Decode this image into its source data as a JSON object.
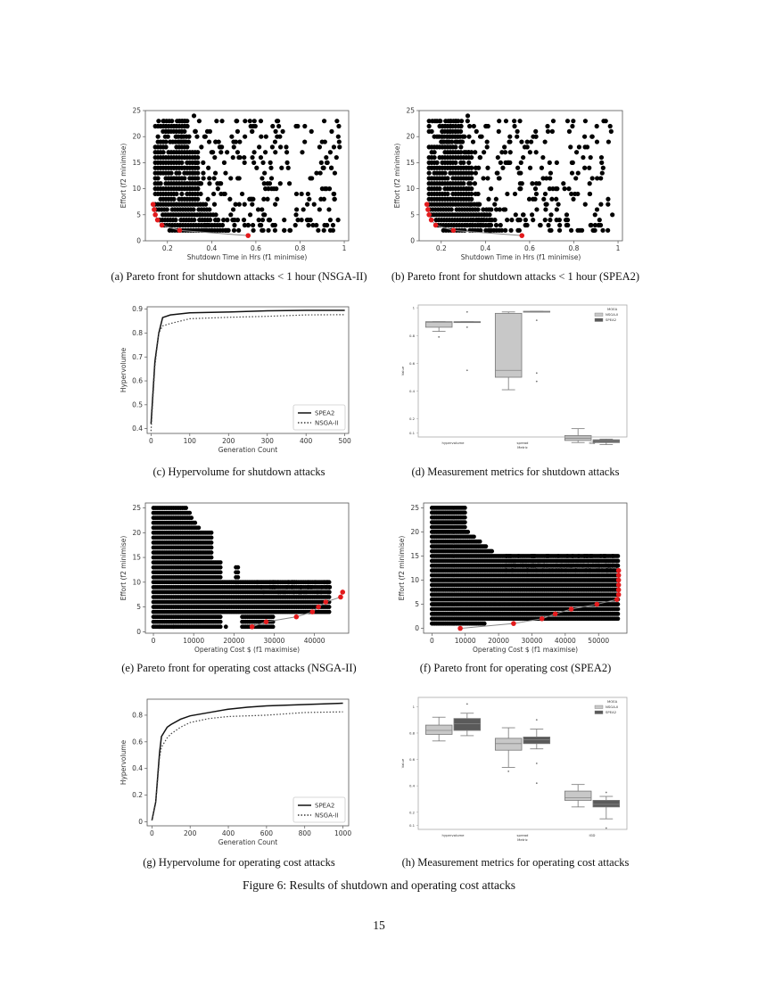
{
  "figure_caption": "Figure 6: Results of shutdown and operating cost attacks",
  "page_number": "15",
  "subcaptions": {
    "a": "(a) Pareto front for shutdown attacks < 1 hour (NSGA-II)",
    "b": "(b) Pareto front for shutdown attacks < 1 hour (SPEA2)",
    "c": "(c) Hypervolume for shutdown attacks",
    "d": "(d) Measurement metrics for shutdown attacks",
    "e": "(e) Pareto front for operating cost attacks (NSGA-II)",
    "f": "(f) Pareto front for operating cost (SPEA2)",
    "g": "(g) Hypervolume for operating cost attacks",
    "h": "(h) Measurement metrics for operating cost attacks"
  },
  "colors": {
    "points": "#000000",
    "pareto": "#e31a1c",
    "box_nsga": "#c8c8c8",
    "box_spea": "#5a5a5a"
  },
  "chart_data": [
    {
      "id": "a",
      "type": "scatter",
      "title": "",
      "xlabel": "Shutdown Time in Hrs (f1 minimise)",
      "ylabel": "Effort (f2 minimise)",
      "xlim": [
        0.1,
        1.02
      ],
      "ylim": [
        0,
        25
      ],
      "xticks": [
        0.2,
        0.4,
        0.6,
        0.8,
        1.0
      ],
      "yticks": [
        0,
        5,
        10,
        15,
        20,
        25
      ],
      "pareto_front": [
        [
          0.135,
          7
        ],
        [
          0.14,
          6
        ],
        [
          0.145,
          5
        ],
        [
          0.155,
          4
        ],
        [
          0.175,
          3
        ],
        [
          0.255,
          2
        ],
        [
          0.565,
          1
        ]
      ]
    },
    {
      "id": "b",
      "type": "scatter",
      "title": "",
      "xlabel": "Shutdown Time in Hrs (f1 minimise)",
      "ylabel": "Effort (f2 minimise)",
      "xlim": [
        0.1,
        1.02
      ],
      "ylim": [
        0,
        25
      ],
      "xticks": [
        0.2,
        0.4,
        0.6,
        0.8,
        1.0
      ],
      "yticks": [
        0,
        5,
        10,
        15,
        20,
        25
      ],
      "pareto_front": [
        [
          0.135,
          7
        ],
        [
          0.14,
          6
        ],
        [
          0.145,
          5
        ],
        [
          0.155,
          4
        ],
        [
          0.175,
          3
        ],
        [
          0.255,
          2
        ],
        [
          0.565,
          1
        ]
      ]
    },
    {
      "id": "c",
      "type": "line",
      "title": "",
      "xlabel": "Generation Count",
      "ylabel": "Hypervolume",
      "xlim": [
        -10,
        510
      ],
      "ylim": [
        0.38,
        0.91
      ],
      "xticks": [
        0,
        100,
        200,
        300,
        400,
        500
      ],
      "yticks": [
        0.4,
        0.5,
        0.6,
        0.7,
        0.8,
        0.9
      ],
      "legend": [
        "SPEA2",
        "NSGA-II"
      ],
      "legend_position": "lower right",
      "x": [
        0,
        10,
        20,
        30,
        50,
        100,
        200,
        300,
        400,
        500
      ],
      "series": [
        {
          "name": "SPEA2",
          "values": [
            0.42,
            0.68,
            0.8,
            0.865,
            0.876,
            0.885,
            0.888,
            0.893,
            0.895,
            0.895
          ]
        },
        {
          "name": "NSGA-II",
          "values": [
            0.39,
            0.66,
            0.8,
            0.83,
            0.84,
            0.86,
            0.866,
            0.87,
            0.876,
            0.877
          ]
        }
      ]
    },
    {
      "id": "d",
      "type": "box",
      "title": "",
      "xlabel": "Metric",
      "ylabel": "Value",
      "ylim": [
        0.07,
        1.02
      ],
      "yticks": [
        0.1,
        0.2,
        0.4,
        0.6,
        0.8,
        1.0
      ],
      "categories": [
        "hypervolume",
        "spread",
        "IGD"
      ],
      "legend_title": "MOEA",
      "legend": [
        "NSGA-II",
        "SPEA2"
      ],
      "series": [
        {
          "name": "NSGA-II",
          "boxes": [
            {
              "min": 0.83,
              "q1": 0.86,
              "median": 0.895,
              "q3": 0.9,
              "max": 0.9,
              "outliers": [
                0.79
              ]
            },
            {
              "min": 0.41,
              "q1": 0.5,
              "median": 0.55,
              "q3": 0.96,
              "max": 0.97,
              "outliers": []
            },
            {
              "min": 0.03,
              "q1": 0.045,
              "median": 0.06,
              "q3": 0.08,
              "max": 0.13,
              "outliers": []
            }
          ]
        },
        {
          "name": "SPEA2",
          "boxes": [
            {
              "min": 0.9,
              "q1": 0.9,
              "median": 0.9,
              "q3": 0.9,
              "max": 0.9,
              "outliers": [
                0.97,
                0.86,
                0.55
              ]
            },
            {
              "min": 0.97,
              "q1": 0.97,
              "median": 0.97,
              "q3": 0.975,
              "max": 0.975,
              "outliers": [
                0.91,
                0.53,
                0.47
              ]
            },
            {
              "min": 0.015,
              "q1": 0.03,
              "median": 0.04,
              "q3": 0.05,
              "max": 0.055,
              "outliers": []
            }
          ]
        }
      ]
    },
    {
      "id": "e",
      "type": "scatter",
      "title": "",
      "xlabel": "Operating Cost $ (f1 maximise)",
      "ylabel": "Effort (f2 minimise)",
      "xlim": [
        -2000,
        48500
      ],
      "ylim": [
        -0.3,
        26
      ],
      "xticks": [
        0,
        10000,
        20000,
        30000,
        40000
      ],
      "yticks": [
        0,
        5,
        10,
        15,
        20,
        25
      ],
      "pareto_front": [
        [
          24500,
          1
        ],
        [
          28000,
          2
        ],
        [
          35500,
          3
        ],
        [
          39500,
          4
        ],
        [
          41000,
          5
        ],
        [
          42800,
          6
        ],
        [
          46500,
          7
        ],
        [
          47000,
          8
        ]
      ]
    },
    {
      "id": "f",
      "type": "scatter",
      "title": "",
      "xlabel": "Operating Cost $ (f1 maximise)",
      "ylabel": "Effort (f2 minimise)",
      "xlim": [
        -2500,
        58500
      ],
      "ylim": [
        -1,
        26
      ],
      "xticks": [
        0,
        10000,
        20000,
        30000,
        40000,
        50000
      ],
      "yticks": [
        0,
        5,
        10,
        15,
        20,
        25
      ],
      "pareto_front": [
        [
          8500,
          0
        ],
        [
          24500,
          1
        ],
        [
          33000,
          2
        ],
        [
          37000,
          3
        ],
        [
          41800,
          4
        ],
        [
          49500,
          5
        ],
        [
          55500,
          6
        ],
        [
          56000,
          7
        ],
        [
          56000,
          8
        ],
        [
          56000,
          9
        ],
        [
          56000,
          10
        ],
        [
          56000,
          11
        ],
        [
          56000,
          12
        ]
      ]
    },
    {
      "id": "g",
      "type": "line",
      "title": "",
      "xlabel": "Generation Count",
      "ylabel": "Hypervolume",
      "xlim": [
        -25,
        1030
      ],
      "ylim": [
        -0.03,
        0.92
      ],
      "xticks": [
        0,
        200,
        400,
        600,
        800,
        1000
      ],
      "yticks": [
        0.0,
        0.2,
        0.4,
        0.6,
        0.8
      ],
      "legend": [
        "SPEA2",
        "NSGA-II"
      ],
      "legend_position": "lower right",
      "x": [
        0,
        20,
        40,
        50,
        80,
        100,
        150,
        200,
        300,
        400,
        500,
        600,
        800,
        1000
      ],
      "series": [
        {
          "name": "SPEA2",
          "values": [
            0.01,
            0.15,
            0.52,
            0.64,
            0.71,
            0.73,
            0.77,
            0.795,
            0.82,
            0.845,
            0.86,
            0.87,
            0.88,
            0.89
          ]
        },
        {
          "name": "NSGA-II",
          "values": [
            0.01,
            0.14,
            0.48,
            0.56,
            0.63,
            0.66,
            0.71,
            0.745,
            0.775,
            0.79,
            0.795,
            0.8,
            0.82,
            0.825
          ]
        }
      ]
    },
    {
      "id": "h",
      "type": "box",
      "title": "",
      "xlabel": "Metric",
      "ylabel": "Value",
      "ylim": [
        0.07,
        1.07
      ],
      "yticks": [
        0.1,
        0.2,
        0.4,
        0.6,
        0.8,
        1.0
      ],
      "categories": [
        "hypervolume",
        "spread",
        "IGD"
      ],
      "legend_title": "MOEA",
      "legend": [
        "NSGA-II",
        "SPEA2"
      ],
      "series": [
        {
          "name": "NSGA-II",
          "boxes": [
            {
              "min": 0.74,
              "q1": 0.79,
              "median": 0.82,
              "q3": 0.86,
              "max": 0.92,
              "outliers": []
            },
            {
              "min": 0.54,
              "q1": 0.67,
              "median": 0.72,
              "q3": 0.76,
              "max": 0.84,
              "outliers": [
                0.51
              ]
            },
            {
              "min": 0.24,
              "q1": 0.29,
              "median": 0.31,
              "q3": 0.36,
              "max": 0.41,
              "outliers": []
            }
          ]
        },
        {
          "name": "SPEA2",
          "boxes": [
            {
              "min": 0.78,
              "q1": 0.82,
              "median": 0.87,
              "q3": 0.91,
              "max": 0.95,
              "outliers": [
                1.02
              ]
            },
            {
              "min": 0.68,
              "q1": 0.72,
              "median": 0.75,
              "q3": 0.77,
              "max": 0.83,
              "outliers": [
                0.9,
                0.57,
                0.42
              ]
            },
            {
              "min": 0.15,
              "q1": 0.24,
              "median": 0.26,
              "q3": 0.29,
              "max": 0.32,
              "outliers": [
                0.35,
                0.08
              ]
            }
          ]
        }
      ]
    }
  ]
}
